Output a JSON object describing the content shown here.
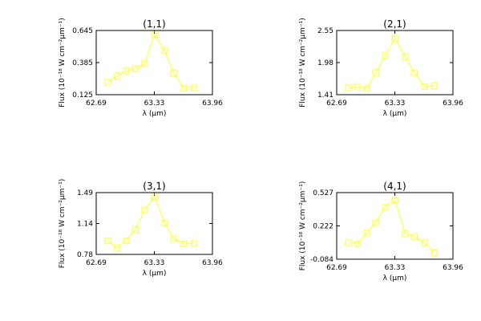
{
  "chart_data": [
    {
      "type": "line",
      "title": "(1,1)",
      "xlabel": "λ (μm)",
      "ylabel": "Flux (10⁻¹⁸ W cm⁻²μm⁻¹)",
      "x_ticks": [
        "62.69",
        "63.33",
        "63.96"
      ],
      "y_ticks": [
        "0.125",
        "0.385",
        "0.645"
      ],
      "xlim": [
        62.69,
        63.96
      ],
      "ylim": [
        0.125,
        0.645
      ],
      "x": [
        62.82,
        62.92,
        63.02,
        63.12,
        63.22,
        63.33,
        63.44,
        63.54,
        63.65,
        63.76
      ],
      "series": [
        {
          "values": [
            0.225,
            0.275,
            0.315,
            0.335,
            0.375,
            0.61,
            0.48,
            0.3,
            0.175,
            0.18
          ]
        }
      ]
    },
    {
      "type": "line",
      "title": "(2,1)",
      "xlabel": "λ (μm)",
      "ylabel": "Flux (10⁻¹⁸ W cm⁻²μm⁻¹)",
      "x_ticks": [
        "62.69",
        "63.33",
        "63.96"
      ],
      "y_ticks": [
        "1.41",
        "1.98",
        "2.55"
      ],
      "xlim": [
        62.69,
        63.96
      ],
      "ylim": [
        1.41,
        2.55
      ],
      "x": [
        62.82,
        62.92,
        63.02,
        63.12,
        63.22,
        63.33,
        63.44,
        63.54,
        63.65,
        63.76
      ],
      "series": [
        {
          "values": [
            1.53,
            1.545,
            1.52,
            1.8,
            2.1,
            2.4,
            2.08,
            1.8,
            1.55,
            1.565
          ]
        }
      ]
    },
    {
      "type": "line",
      "title": "(3,1)",
      "xlabel": "λ (μm)",
      "ylabel": "Flux (10⁻¹⁸ W cm⁻²μm⁻¹)",
      "x_ticks": [
        "62.69",
        "63.33",
        "63.96"
      ],
      "y_ticks": [
        "0.78",
        "1.14",
        "1.49"
      ],
      "xlim": [
        62.69,
        63.96
      ],
      "ylim": [
        0.78,
        1.49
      ],
      "x": [
        62.82,
        62.92,
        63.02,
        63.12,
        63.22,
        63.33,
        63.44,
        63.54,
        63.65,
        63.76
      ],
      "series": [
        {
          "values": [
            0.935,
            0.85,
            0.935,
            1.06,
            1.29,
            1.44,
            1.14,
            0.96,
            0.9,
            0.905
          ]
        }
      ]
    },
    {
      "type": "line",
      "title": "(4,1)",
      "xlabel": "λ (μm)",
      "ylabel": "Flux (10⁻¹⁸ W cm⁻²μm⁻¹)",
      "x_ticks": [
        "62.69",
        "63.33",
        "63.96"
      ],
      "y_ticks": [
        "-0.084",
        "0.222",
        "0.527"
      ],
      "xlim": [
        62.69,
        63.96
      ],
      "ylim": [
        -0.084,
        0.527
      ],
      "x": [
        62.82,
        62.92,
        63.02,
        63.12,
        63.22,
        63.33,
        63.44,
        63.54,
        63.65,
        63.76
      ],
      "series": [
        {
          "values": [
            0.065,
            0.055,
            0.155,
            0.25,
            0.39,
            0.455,
            0.15,
            0.12,
            0.065,
            -0.025
          ]
        }
      ]
    }
  ],
  "colors": {
    "series": "#ffff33",
    "axes": "#000000",
    "background": "#ffffff"
  },
  "marker": "open-square"
}
